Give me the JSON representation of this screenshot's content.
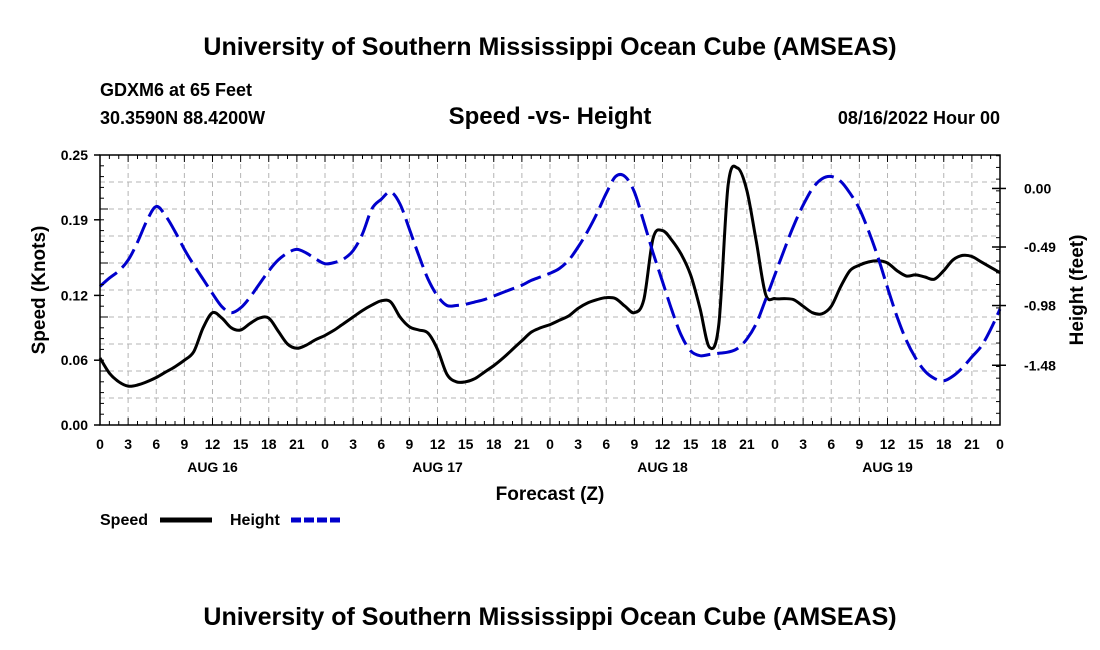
{
  "header": {
    "title": "University of Southern Mississippi Ocean Cube (AMSEAS)",
    "station": "GDXM6 at 65 Feet",
    "coords": "30.3590N  88.4200W",
    "subtitle": "Speed -vs- Height",
    "datetime": "08/16/2022 Hour 00"
  },
  "footer": {
    "title": "University of Southern Mississippi Ocean Cube (AMSEAS)"
  },
  "chart_data": {
    "type": "line",
    "title": "Speed -vs- Height",
    "xlabel": "Forecast (Z)",
    "ylabel": "Speed (Knots)",
    "y2label": "Height (feet)",
    "xlim": [
      0,
      96
    ],
    "ylim": [
      0,
      0.25
    ],
    "y2lim": [
      -1.98,
      0.28
    ],
    "x_ticks": [
      0,
      3,
      6,
      9,
      12,
      15,
      18,
      21,
      24,
      27,
      30,
      33,
      36,
      39,
      42,
      45,
      48,
      51,
      54,
      57,
      60,
      63,
      66,
      69,
      72,
      75,
      78,
      81,
      84,
      87,
      90,
      93,
      96
    ],
    "x_tick_labels": [
      "0",
      "3",
      "6",
      "9",
      "12",
      "15",
      "18",
      "21",
      "0",
      "3",
      "6",
      "9",
      "12",
      "15",
      "18",
      "21",
      "0",
      "3",
      "6",
      "9",
      "12",
      "15",
      "18",
      "21",
      "0",
      "3",
      "6",
      "9",
      "12",
      "15",
      "18",
      "21",
      "0"
    ],
    "day_labels": [
      {
        "x": 12,
        "label": "AUG 16"
      },
      {
        "x": 36,
        "label": "AUG 17"
      },
      {
        "x": 60,
        "label": "AUG 18"
      },
      {
        "x": 84,
        "label": "AUG 19"
      }
    ],
    "y_ticks": [
      0.0,
      0.06,
      0.12,
      0.19,
      0.25
    ],
    "y_tick_labels": [
      "0.00",
      "0.06",
      "0.12",
      "0.19",
      "0.25"
    ],
    "y2_ticks": [
      0.0,
      -0.49,
      -0.98,
      -1.48
    ],
    "y2_tick_labels": [
      "0.00",
      "-0.49",
      "-0.98",
      "-1.48"
    ],
    "grid": true,
    "legend_position": "bottom-left",
    "series": [
      {
        "name": "Speed",
        "axis": "left",
        "color": "#000000",
        "style": "solid",
        "x": [
          0,
          1,
          2,
          3,
          4,
          5,
          6,
          7,
          8,
          9,
          10,
          11,
          12,
          13,
          14,
          15,
          16,
          17,
          18,
          19,
          20,
          21,
          22,
          23,
          24,
          25,
          26,
          27,
          28,
          29,
          30,
          31,
          32,
          33,
          34,
          35,
          36,
          37,
          38,
          39,
          40,
          41,
          42,
          43,
          44,
          45,
          46,
          47,
          48,
          49,
          50,
          51,
          52,
          53,
          54,
          55,
          56,
          57,
          58,
          59,
          60,
          61,
          62,
          63,
          64,
          65,
          66,
          67,
          68,
          69,
          70,
          71,
          72,
          73,
          74,
          75,
          76,
          77,
          78,
          79,
          80,
          81,
          82,
          83,
          84,
          85,
          86,
          87,
          88,
          89,
          90,
          91,
          92,
          93,
          94,
          95,
          96
        ],
        "values": [
          0.062,
          0.048,
          0.04,
          0.036,
          0.037,
          0.04,
          0.044,
          0.049,
          0.054,
          0.06,
          0.068,
          0.09,
          0.104,
          0.099,
          0.09,
          0.088,
          0.094,
          0.099,
          0.099,
          0.087,
          0.075,
          0.071,
          0.074,
          0.079,
          0.083,
          0.088,
          0.094,
          0.1,
          0.106,
          0.111,
          0.115,
          0.114,
          0.1,
          0.091,
          0.088,
          0.085,
          0.07,
          0.047,
          0.04,
          0.04,
          0.043,
          0.049,
          0.055,
          0.062,
          0.07,
          0.078,
          0.086,
          0.09,
          0.093,
          0.097,
          0.101,
          0.108,
          0.113,
          0.116,
          0.118,
          0.117,
          0.11,
          0.104,
          0.116,
          0.173,
          0.18,
          0.171,
          0.158,
          0.139,
          0.108,
          0.072,
          0.093,
          0.222,
          0.238,
          0.217,
          0.17,
          0.121,
          0.117,
          0.117,
          0.116,
          0.11,
          0.104,
          0.103,
          0.11,
          0.128,
          0.143,
          0.148,
          0.151,
          0.152,
          0.15,
          0.143,
          0.138,
          0.139,
          0.137,
          0.135,
          0.143,
          0.153,
          0.157,
          0.156,
          0.151,
          0.146,
          0.141
        ]
      },
      {
        "name": "Height",
        "axis": "right",
        "color": "#0000cc",
        "style": "dashed",
        "x": [
          0,
          1,
          2,
          3,
          4,
          5,
          6,
          7,
          8,
          9,
          10,
          11,
          12,
          13,
          14,
          15,
          16,
          17,
          18,
          19,
          20,
          21,
          22,
          23,
          24,
          25,
          26,
          27,
          28,
          29,
          30,
          31,
          32,
          33,
          34,
          35,
          36,
          37,
          38,
          39,
          40,
          41,
          42,
          43,
          44,
          45,
          46,
          47,
          48,
          49,
          50,
          51,
          52,
          53,
          54,
          55,
          56,
          57,
          58,
          59,
          60,
          61,
          62,
          63,
          64,
          65,
          66,
          67,
          68,
          69,
          70,
          71,
          72,
          73,
          74,
          75,
          76,
          77,
          78,
          79,
          80,
          81,
          82,
          83,
          84,
          85,
          86,
          87,
          88,
          89,
          90,
          91,
          92,
          93,
          94,
          95,
          96
        ],
        "values": [
          -0.82,
          -0.75,
          -0.69,
          -0.6,
          -0.45,
          -0.27,
          -0.15,
          -0.23,
          -0.36,
          -0.51,
          -0.64,
          -0.76,
          -0.88,
          -0.99,
          -1.04,
          -1.0,
          -0.91,
          -0.8,
          -0.69,
          -0.6,
          -0.54,
          -0.51,
          -0.54,
          -0.59,
          -0.63,
          -0.62,
          -0.59,
          -0.52,
          -0.38,
          -0.17,
          -0.09,
          -0.03,
          -0.13,
          -0.34,
          -0.56,
          -0.76,
          -0.9,
          -0.98,
          -0.98,
          -0.97,
          -0.95,
          -0.93,
          -0.9,
          -0.87,
          -0.84,
          -0.81,
          -0.77,
          -0.74,
          -0.71,
          -0.67,
          -0.6,
          -0.49,
          -0.36,
          -0.21,
          -0.04,
          0.1,
          0.1,
          -0.03,
          -0.28,
          -0.54,
          -0.78,
          -1.02,
          -1.23,
          -1.36,
          -1.4,
          -1.39,
          -1.38,
          -1.37,
          -1.34,
          -1.26,
          -1.13,
          -0.93,
          -0.72,
          -0.51,
          -0.31,
          -0.14,
          0.0,
          0.08,
          0.1,
          0.06,
          -0.04,
          -0.17,
          -0.36,
          -0.58,
          -0.83,
          -1.07,
          -1.27,
          -1.42,
          -1.53,
          -1.59,
          -1.61,
          -1.57,
          -1.5,
          -1.41,
          -1.32,
          -1.18,
          -1.01
        ]
      }
    ]
  }
}
